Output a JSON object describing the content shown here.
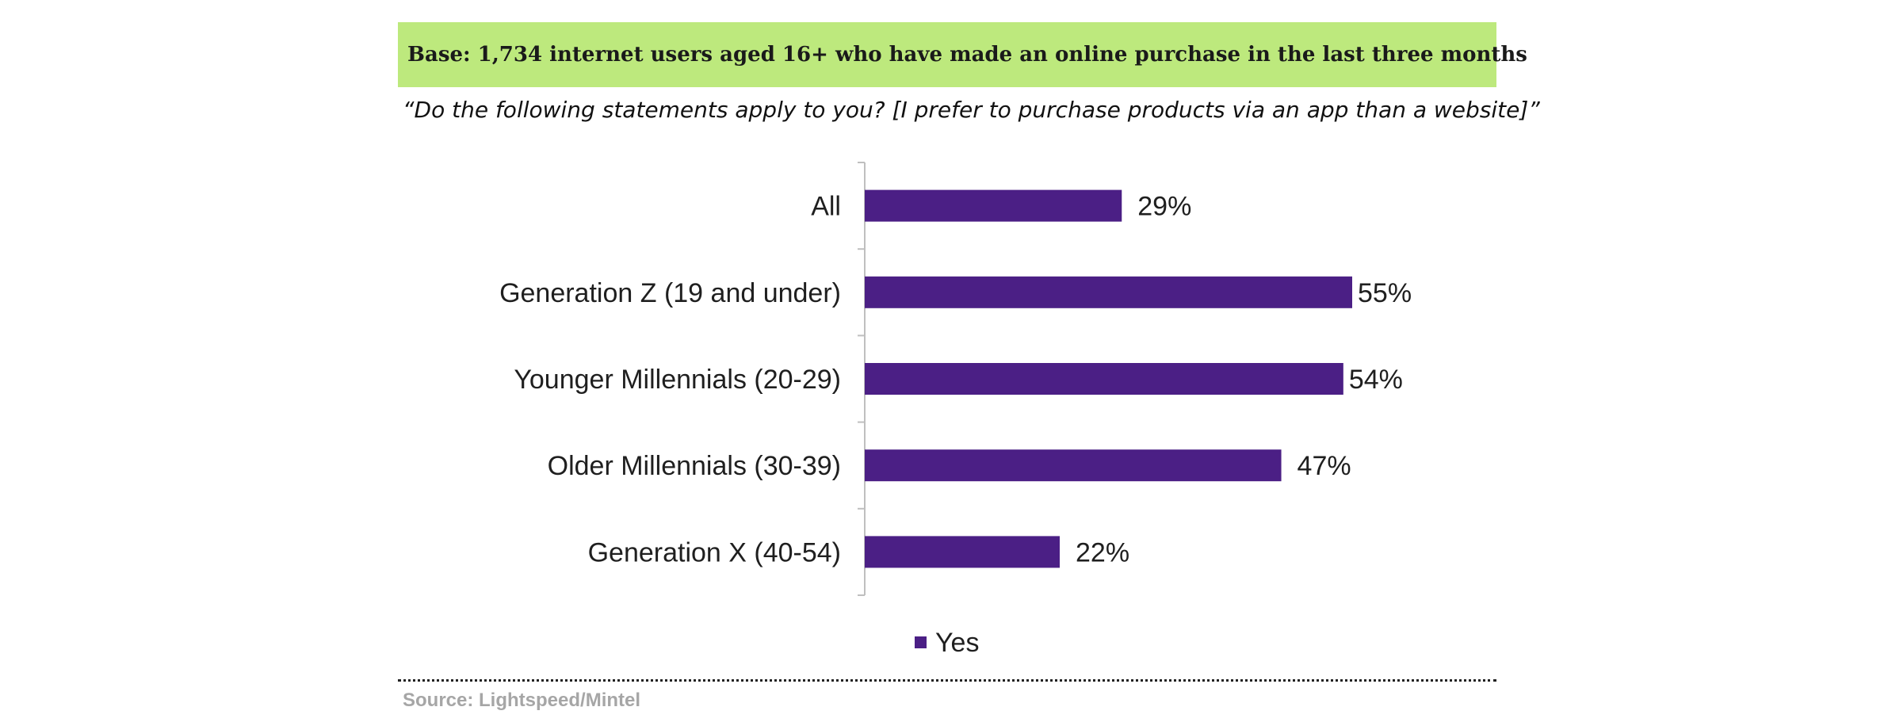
{
  "header": {
    "base_text": "Base: 1,734 internet users aged 16+ who have made an online purchase in the last three months",
    "base_bg_color": "#bde97d"
  },
  "question": "“Do the following statements apply to you? [I prefer to purchase products via an app than a website]”",
  "source": "Source: Lightspeed/Mintel",
  "chart_data": {
    "type": "bar",
    "orientation": "horizontal",
    "categories": [
      "All",
      "Generation Z (19 and under)",
      "Younger Millennials (20-29)",
      "Older Millennials (30-39)",
      "Generation X (40-54)"
    ],
    "series": [
      {
        "name": "Yes",
        "values": [
          29,
          55,
          54,
          47,
          22
        ],
        "labels": [
          "29%",
          "55%",
          "54%",
          "47%",
          "22%"
        ],
        "color": "#4b1f85"
      }
    ],
    "value_unit": "%",
    "xlim": [
      0,
      55
    ],
    "grid": false,
    "legend": "bottom-center"
  }
}
